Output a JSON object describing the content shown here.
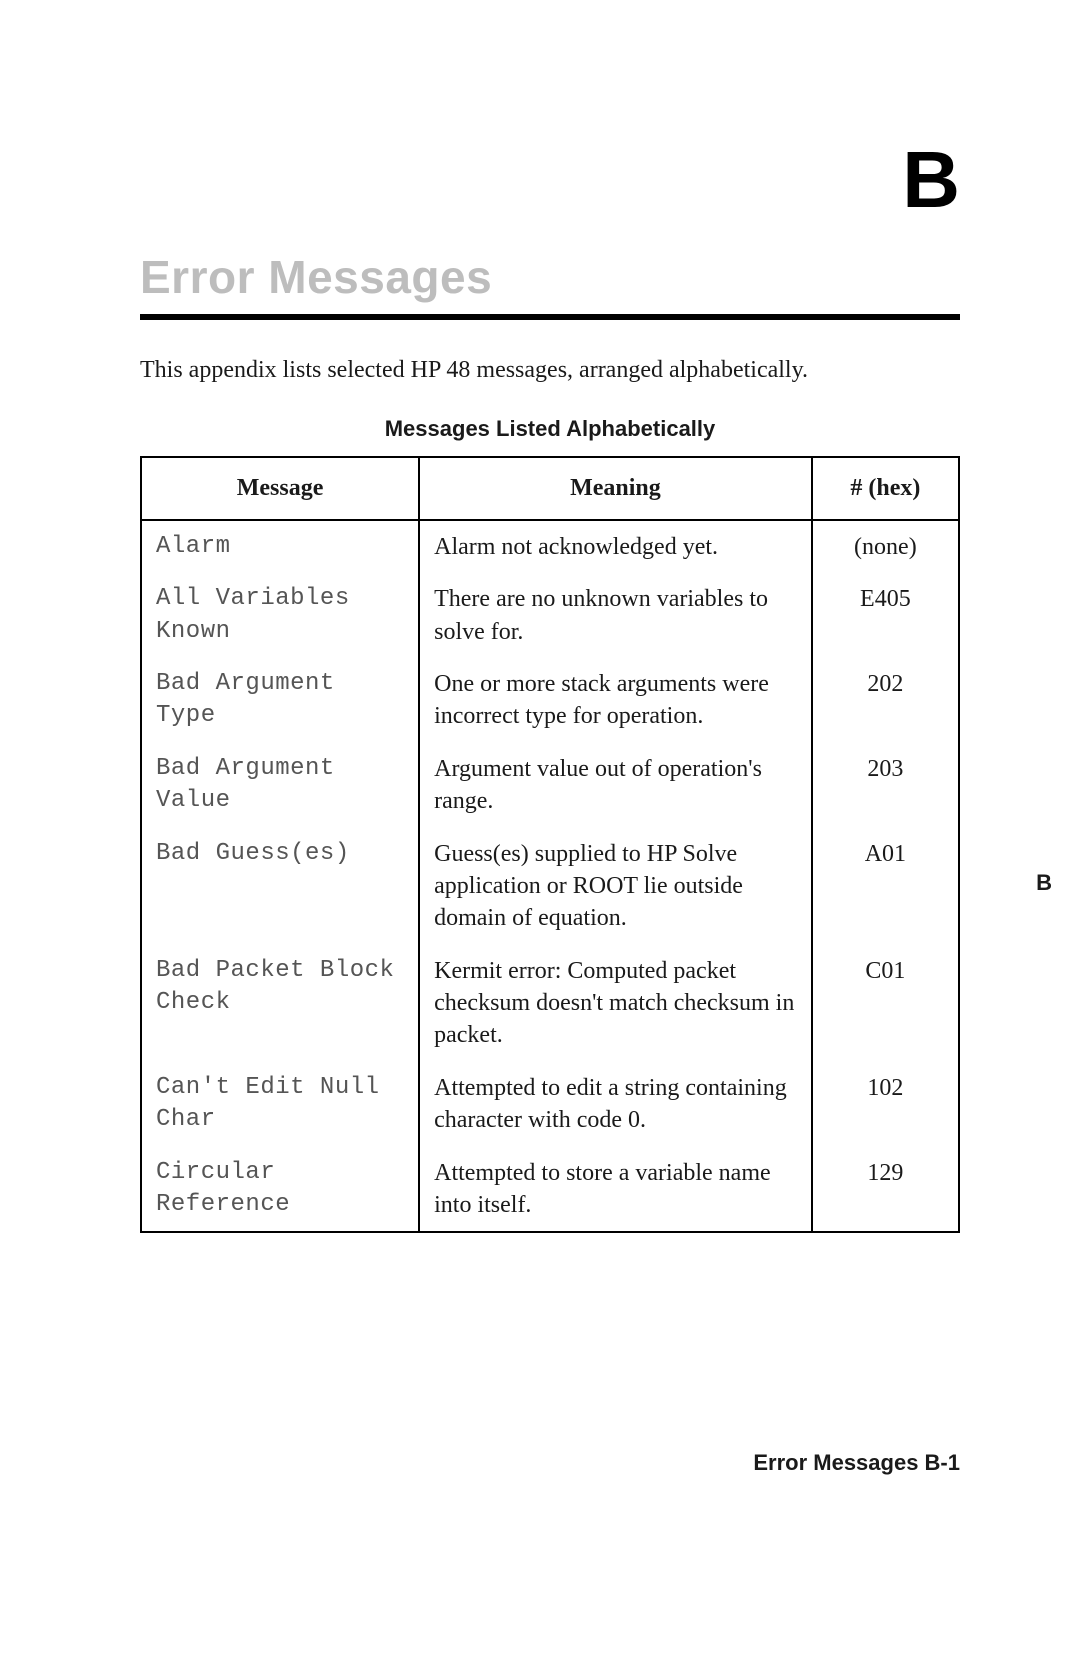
{
  "appendix_letter": "B",
  "title": "Error Messages",
  "intro": "This appendix lists selected HP 48 messages, arranged alphabetically.",
  "table": {
    "caption": "Messages Listed Alphabetically",
    "columns": {
      "message": "Message",
      "meaning": "Meaning",
      "hex": "# (hex)"
    },
    "rows": [
      {
        "message": "Alarm",
        "meaning": "Alarm not acknowledged yet.",
        "hex": "(none)"
      },
      {
        "message": "All Variables Known",
        "meaning": "There are no unknown variables to solve for.",
        "hex": "E405"
      },
      {
        "message": "Bad Argument Type",
        "meaning": "One or more stack arguments were incorrect type for operation.",
        "hex": "202"
      },
      {
        "message": "Bad Argument Value",
        "meaning": "Argument value out of operation's range.",
        "hex": "203"
      },
      {
        "message": "Bad Guess(es)",
        "meaning": "Guess(es) supplied to HP Solve application or ROOT lie outside domain of equation.",
        "hex": "A01"
      },
      {
        "message": "Bad Packet Block Check",
        "meaning": "Kermit error: Computed packet checksum doesn't match checksum in packet.",
        "hex": "C01"
      },
      {
        "message": "Can't Edit Null Char",
        "meaning": "Attempted to edit a string containing character with code 0.",
        "hex": "102"
      },
      {
        "message": "Circular Reference",
        "meaning": "Attempted to store a variable name into itself.",
        "hex": "129"
      }
    ]
  },
  "side_tab": "B",
  "footer": "Error Messages   B-1"
}
